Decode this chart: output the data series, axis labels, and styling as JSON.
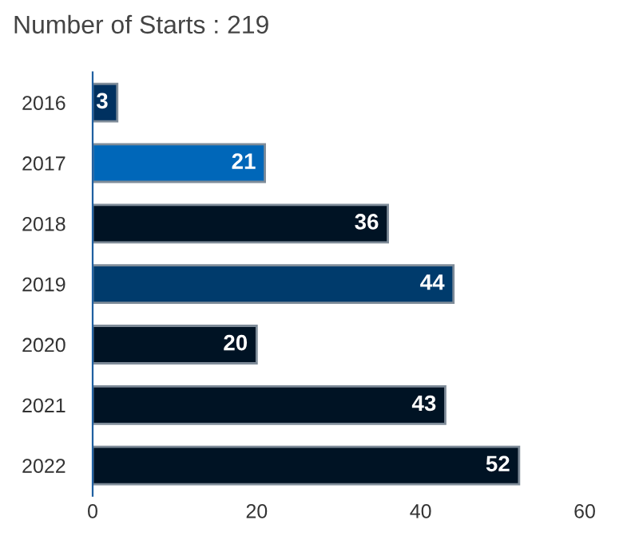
{
  "chart_data": {
    "type": "bar",
    "orientation": "horizontal",
    "title": "Number of Starts : 219",
    "categories": [
      "2016",
      "2017",
      "2018",
      "2019",
      "2020",
      "2021",
      "2022"
    ],
    "values": [
      3,
      21,
      36,
      44,
      20,
      43,
      52
    ],
    "colors": [
      "#003160",
      "#0067b9",
      "#001324",
      "#003b6c",
      "#001324",
      "#001324",
      "#001324"
    ],
    "xlim": [
      0,
      60
    ],
    "xticks": [
      0,
      20,
      40,
      60
    ],
    "data_labels": true,
    "grid": false
  }
}
